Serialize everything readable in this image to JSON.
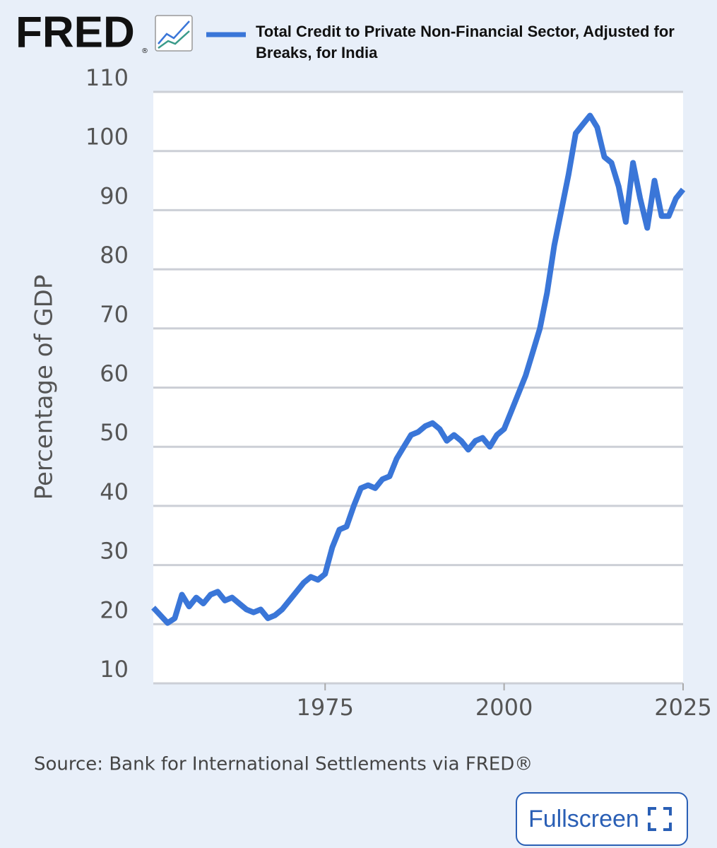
{
  "logo": "FRED",
  "logo_mark": "®",
  "chart_data": {
    "type": "line",
    "y_label": "Percentage of GDP",
    "x": [
      1951,
      1952,
      1953,
      1954,
      1955,
      1956,
      1957,
      1958,
      1959,
      1960,
      1961,
      1962,
      1963,
      1964,
      1965,
      1966,
      1967,
      1968,
      1969,
      1970,
      1971,
      1972,
      1973,
      1974,
      1975,
      1976,
      1977,
      1978,
      1979,
      1980,
      1981,
      1982,
      1983,
      1984,
      1985,
      1986,
      1987,
      1988,
      1989,
      1990,
      1991,
      1992,
      1993,
      1994,
      1995,
      1996,
      1997,
      1998,
      1999,
      2000,
      2001,
      2002,
      2003,
      2004,
      2005,
      2006,
      2007,
      2008,
      2009,
      2010,
      2011,
      2012,
      2013,
      2014,
      2015,
      2016,
      2017,
      2018,
      2019,
      2020,
      2021,
      2022,
      2023,
      2024,
      2025
    ],
    "series": [
      {
        "name": "Total Credit to Private Non-Financial Sector, Adjusted for Breaks, for India",
        "color": "#3a76d8",
        "values": [
          22.8,
          21.5,
          20.2,
          21,
          25,
          23,
          24.5,
          23.5,
          25,
          25.5,
          24,
          24.5,
          23.5,
          22.5,
          22,
          22.5,
          21,
          21.5,
          22.5,
          24,
          25.5,
          27,
          28,
          27.5,
          28.5,
          33,
          36,
          36.5,
          40,
          43,
          43.5,
          43,
          44.5,
          45,
          48,
          50,
          52,
          52.5,
          53.5,
          54,
          53,
          51,
          52,
          51,
          49.5,
          51,
          51.5,
          50,
          52,
          53,
          56,
          59,
          62,
          66,
          70,
          76,
          84,
          90,
          96,
          103,
          104.5,
          106,
          104,
          99,
          98,
          94,
          88,
          98,
          92,
          87,
          95,
          89,
          89,
          92,
          93.5
        ]
      }
    ],
    "xlim": [
      1951,
      2025
    ],
    "xticks": [
      1975,
      2000,
      2025
    ],
    "ylim": [
      10,
      110
    ],
    "yticks": [
      10,
      20,
      30,
      40,
      50,
      60,
      70,
      80,
      90,
      100,
      110
    ],
    "grid": true,
    "source": "Source: Bank for International Settlements via FRED®"
  },
  "button": {
    "label": "Fullscreen"
  }
}
